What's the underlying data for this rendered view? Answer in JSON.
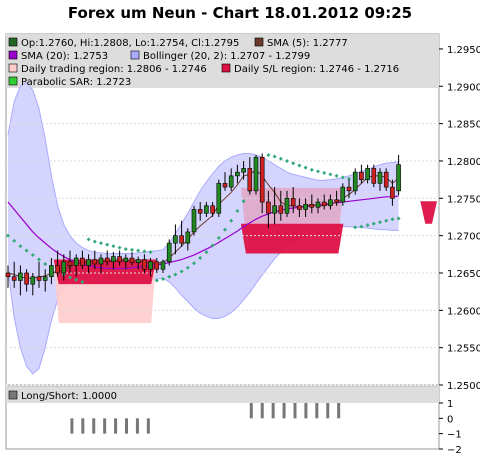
{
  "chart_data": {
    "type": "candlestick",
    "title": "Forex um Neun - Chart 18.01.2012 09:25",
    "legend": [
      {
        "label": "Op:1.2760, Hi:1.2808, Lo:1.2754, Cl:1.2795",
        "color": "#226622"
      },
      {
        "label": "SMA (5): 1.2777",
        "color": "#6b3a2a"
      },
      {
        "label": "SMA (20): 1.2753",
        "color": "#9900cc"
      },
      {
        "label": "Bollinger (20, 2): 1.2707 - 1.2799",
        "color": "#aaaaff"
      },
      {
        "label": "Daily trading region: 1.2806 - 1.2746",
        "color": "#ffcccc"
      },
      {
        "label": "Daily S/L region: 1.2746 - 1.2716",
        "color": "#dd1144"
      },
      {
        "label": "Parabolic SAR: 1.2723",
        "color": "#33cc33"
      }
    ],
    "y_ticks": [
      "1.2950",
      "1.2900",
      "1.2850",
      "1.2800",
      "1.2750",
      "1.2700",
      "1.2650",
      "1.2600",
      "1.2550",
      "1.2500"
    ],
    "ylim": [
      1.25,
      1.297
    ],
    "candles": [
      [
        1.265,
        1.266,
        1.263,
        1.2645
      ],
      [
        1.2645,
        1.2665,
        1.263,
        1.264
      ],
      [
        1.264,
        1.266,
        1.262,
        1.265
      ],
      [
        1.265,
        1.2655,
        1.2625,
        1.2635
      ],
      [
        1.2635,
        1.265,
        1.262,
        1.2645
      ],
      [
        1.2645,
        1.2665,
        1.263,
        1.264
      ],
      [
        1.264,
        1.2655,
        1.2625,
        1.2645
      ],
      [
        1.2645,
        1.267,
        1.2635,
        1.266
      ],
      [
        1.266,
        1.268,
        1.2645,
        1.265
      ],
      [
        1.265,
        1.2675,
        1.264,
        1.2665
      ],
      [
        1.2665,
        1.268,
        1.265,
        1.266
      ],
      [
        1.266,
        1.2675,
        1.2645,
        1.267
      ],
      [
        1.267,
        1.268,
        1.2655,
        1.266
      ],
      [
        1.266,
        1.2675,
        1.265,
        1.2668
      ],
      [
        1.2668,
        1.268,
        1.2655,
        1.2662
      ],
      [
        1.2662,
        1.2675,
        1.265,
        1.267
      ],
      [
        1.267,
        1.268,
        1.266,
        1.2665
      ],
      [
        1.2665,
        1.2678,
        1.2655,
        1.2672
      ],
      [
        1.2672,
        1.268,
        1.266,
        1.2665
      ],
      [
        1.2665,
        1.2675,
        1.2655,
        1.267
      ],
      [
        1.267,
        1.2678,
        1.266,
        1.2664
      ],
      [
        1.2664,
        1.2672,
        1.2655,
        1.2668
      ],
      [
        1.2668,
        1.2675,
        1.265,
        1.2655
      ],
      [
        1.2655,
        1.267,
        1.2645,
        1.2665
      ],
      [
        1.2665,
        1.267,
        1.265,
        1.2655
      ],
      [
        1.2655,
        1.2668,
        1.265,
        1.2665
      ],
      [
        1.2665,
        1.2695,
        1.266,
        1.269
      ],
      [
        1.269,
        1.2715,
        1.2675,
        1.27
      ],
      [
        1.27,
        1.272,
        1.2685,
        1.269
      ],
      [
        1.269,
        1.271,
        1.268,
        1.2705
      ],
      [
        1.2705,
        1.274,
        1.27,
        1.2735
      ],
      [
        1.2735,
        1.2745,
        1.272,
        1.273
      ],
      [
        1.273,
        1.2745,
        1.2725,
        1.274
      ],
      [
        1.274,
        1.2745,
        1.2725,
        1.273
      ],
      [
        1.273,
        1.2775,
        1.2725,
        1.277
      ],
      [
        1.277,
        1.2785,
        1.276,
        1.2765
      ],
      [
        1.2765,
        1.279,
        1.276,
        1.278
      ],
      [
        1.278,
        1.2795,
        1.277,
        1.2785
      ],
      [
        1.2785,
        1.28,
        1.2775,
        1.279
      ],
      [
        1.279,
        1.2805,
        1.2755,
        1.276
      ],
      [
        1.276,
        1.2808,
        1.2755,
        1.2805
      ],
      [
        1.2805,
        1.281,
        1.273,
        1.2745
      ],
      [
        1.2745,
        1.276,
        1.271,
        1.273
      ],
      [
        1.273,
        1.2765,
        1.2715,
        1.274
      ],
      [
        1.274,
        1.276,
        1.272,
        1.273
      ],
      [
        1.273,
        1.276,
        1.2725,
        1.275
      ],
      [
        1.275,
        1.2765,
        1.273,
        1.274
      ],
      [
        1.274,
        1.275,
        1.2725,
        1.2735
      ],
      [
        1.2735,
        1.275,
        1.2725,
        1.2742
      ],
      [
        1.2742,
        1.2755,
        1.273,
        1.2738
      ],
      [
        1.2738,
        1.275,
        1.273,
        1.2745
      ],
      [
        1.2745,
        1.2755,
        1.2735,
        1.274
      ],
      [
        1.274,
        1.2755,
        1.2735,
        1.2748
      ],
      [
        1.2748,
        1.276,
        1.274,
        1.2745
      ],
      [
        1.2745,
        1.277,
        1.274,
        1.2765
      ],
      [
        1.2765,
        1.2775,
        1.275,
        1.276
      ],
      [
        1.276,
        1.279,
        1.2755,
        1.2785
      ],
      [
        1.2785,
        1.2795,
        1.277,
        1.2775
      ],
      [
        1.2775,
        1.2795,
        1.277,
        1.279
      ],
      [
        1.279,
        1.2795,
        1.2765,
        1.277
      ],
      [
        1.277,
        1.279,
        1.276,
        1.2785
      ],
      [
        1.2785,
        1.279,
        1.276,
        1.2765
      ],
      [
        1.2765,
        1.2775,
        1.274,
        1.275
      ],
      [
        1.276,
        1.2808,
        1.2754,
        1.2795
      ]
    ],
    "sma5": [
      1.265,
      1.2648,
      1.2645,
      1.2643,
      1.2643,
      1.2645,
      1.2646,
      1.265,
      1.2652,
      1.2655,
      1.2658,
      1.2662,
      1.2664,
      1.2665,
      1.2666,
      1.2666,
      1.2666,
      1.2667,
      1.2668,
      1.2668,
      1.2667,
      1.2667,
      1.2664,
      1.2663,
      1.2663,
      1.2664,
      1.267,
      1.2678,
      1.2686,
      1.2695,
      1.2705,
      1.2713,
      1.272,
      1.2727,
      1.2742,
      1.275,
      1.2758,
      1.2768,
      1.278,
      1.2782,
      1.2788,
      1.278,
      1.2768,
      1.2758,
      1.2745,
      1.274,
      1.274,
      1.2738,
      1.274,
      1.2741,
      1.274,
      1.274,
      1.2743,
      1.2744,
      1.275,
      1.2755,
      1.2762,
      1.277,
      1.2778,
      1.278,
      1.278,
      1.2778,
      1.277,
      1.2777
    ],
    "sma20": [
      1.2745,
      1.2735,
      1.2725,
      1.2715,
      1.2705,
      1.2697,
      1.269,
      1.2683,
      1.2677,
      1.2672,
      1.2668,
      1.2665,
      1.2662,
      1.266,
      1.2658,
      1.2657,
      1.2656,
      1.2656,
      1.2656,
      1.2656,
      1.2657,
      1.2658,
      1.2659,
      1.266,
      1.2661,
      1.2662,
      1.2664,
      1.2666,
      1.2668,
      1.2671,
      1.2674,
      1.2678,
      1.2682,
      1.2686,
      1.2691,
      1.2696,
      1.2701,
      1.2706,
      1.2712,
      1.2717,
      1.2722,
      1.2726,
      1.2729,
      1.2732,
      1.2734,
      1.2736,
      1.2737,
      1.2738,
      1.2739,
      1.274,
      1.2741,
      1.2742,
      1.2743,
      1.2744,
      1.2745,
      1.2746,
      1.2747,
      1.2748,
      1.2749,
      1.275,
      1.2751,
      1.2752,
      1.2752,
      1.2753
    ],
    "bb_upper": [
      1.2835,
      1.288,
      1.29,
      1.2905,
      1.2895,
      1.287,
      1.283,
      1.278,
      1.274,
      1.2715,
      1.27,
      1.269,
      1.2684,
      1.268,
      1.2678,
      1.2677,
      1.2676,
      1.2676,
      1.2676,
      1.2676,
      1.2676,
      1.2677,
      1.2678,
      1.2679,
      1.268,
      1.2681,
      1.269,
      1.2703,
      1.2716,
      1.273,
      1.2745,
      1.276,
      1.2772,
      1.2783,
      1.2793,
      1.28,
      1.2805,
      1.2808,
      1.281,
      1.281,
      1.2808,
      1.2805,
      1.28,
      1.2795,
      1.279,
      1.2785,
      1.2782,
      1.278,
      1.2778,
      1.2776,
      1.2774,
      1.2774,
      1.2775,
      1.2776,
      1.2778,
      1.278,
      1.2783,
      1.2786,
      1.2789,
      1.2792,
      1.2795,
      1.2797,
      1.2798,
      1.2799
    ],
    "bb_lower": [
      1.2655,
      1.259,
      1.255,
      1.2525,
      1.2515,
      1.2522,
      1.255,
      1.2586,
      1.2614,
      1.263,
      1.2638,
      1.2642,
      1.2642,
      1.2642,
      1.264,
      1.2638,
      1.2637,
      1.2636,
      1.2636,
      1.2636,
      1.2637,
      1.2638,
      1.264,
      1.2641,
      1.2642,
      1.2643,
      1.2638,
      1.263,
      1.262,
      1.2612,
      1.2603,
      1.2596,
      1.2592,
      1.2589,
      1.2589,
      1.2592,
      1.2597,
      1.2604,
      1.2614,
      1.2624,
      1.2636,
      1.2647,
      1.2658,
      1.2669,
      1.2678,
      1.2687,
      1.2692,
      1.2696,
      1.27,
      1.2704,
      1.2708,
      1.271,
      1.2711,
      1.2712,
      1.2712,
      1.2712,
      1.2711,
      1.2711,
      1.271,
      1.2709,
      1.2708,
      1.2708,
      1.2707,
      1.2707
    ],
    "sar": [
      1.27,
      1.2693,
      1.2686,
      1.268,
      1.2674,
      1.2668,
      1.2662,
      1.2657,
      1.2652,
      1.2648,
      1.2644,
      1.2641,
      1.2638,
      1.2695,
      1.2692,
      1.269,
      1.2688,
      1.2686,
      1.2684,
      1.2682,
      1.2681,
      1.268,
      1.2679,
      1.2678,
      1.264,
      1.2642,
      1.2645,
      1.2648,
      1.2652,
      1.2657,
      1.2663,
      1.267,
      1.2678,
      1.2687,
      1.2697,
      1.2708,
      1.272,
      1.2733,
      1.2746,
      1.276,
      1.2774,
      1.2788,
      1.2808,
      1.2806,
      1.2803,
      1.28,
      1.2797,
      1.2794,
      1.2791,
      1.2788,
      1.2786,
      1.2784,
      1.2782,
      1.278,
      1.2778,
      1.2776,
      1.2711,
      1.2712,
      1.2714,
      1.2716,
      1.2718,
      1.272,
      1.2722,
      1.2723
    ],
    "regions": [
      {
        "type": "trading",
        "from": 13,
        "to": 38,
        "low": 1.2583,
        "high": 1.2668,
        "color": "#ffcccc"
      },
      {
        "type": "sl",
        "from": 13,
        "to": 38,
        "low": 1.2635,
        "high": 1.2668,
        "color": "#dd1144"
      },
      {
        "type": "trading",
        "from": 61,
        "to": 86,
        "low": 1.27,
        "high": 1.2764,
        "color": "#e0a8c8"
      },
      {
        "type": "sl",
        "from": 61,
        "to": 86,
        "low": 1.2676,
        "high": 1.2716,
        "color": "#dd1144"
      },
      {
        "type": "sl",
        "from": 107,
        "to": 110,
        "low": 1.2716,
        "high": 1.2746,
        "color": "#dd1144"
      }
    ],
    "sub_chart": {
      "legend": "Long/Short: 1.0000",
      "y_ticks": [
        "1",
        "0",
        "−1",
        "−2"
      ],
      "ylim": [
        -2,
        1
      ],
      "bars": [
        {
          "from": 16,
          "to": 38,
          "value": -1
        },
        {
          "from": 62,
          "to": 86,
          "value": 1
        }
      ]
    }
  }
}
